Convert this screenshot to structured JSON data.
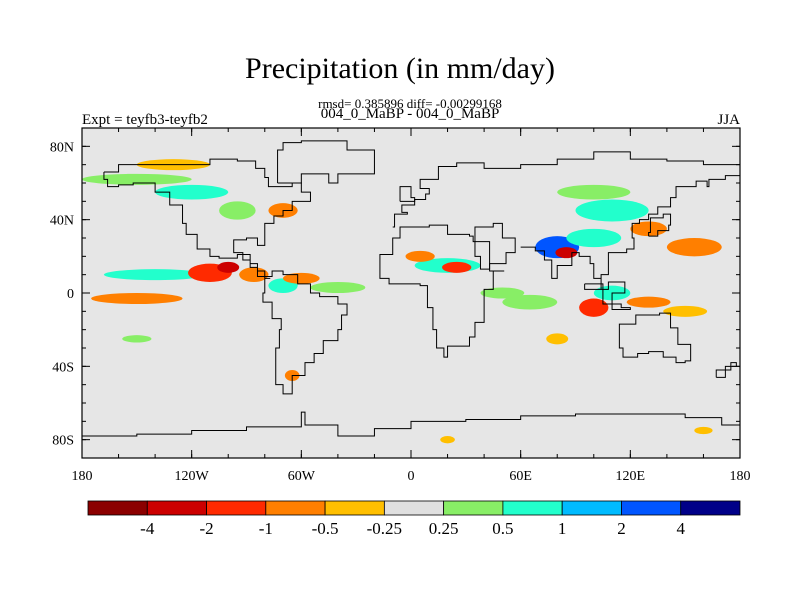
{
  "chart_data": {
    "type": "heatmap",
    "title": "Precipitation (in mm/day)",
    "stats_text": "rmsd= 0.385896 diff= -0.00299168",
    "run_label": "004_0_MaBP - 004_0_MaBP",
    "left_label": "Expt = teyfb3-teyfb2",
    "right_label": "JJA",
    "x_axis": {
      "ticks": [
        {
          "value": -180,
          "label": "180"
        },
        {
          "value": -120,
          "label": "120W"
        },
        {
          "value": -60,
          "label": "60W"
        },
        {
          "value": 0,
          "label": "0"
        },
        {
          "value": 60,
          "label": "60E"
        },
        {
          "value": 120,
          "label": "120E"
        },
        {
          "value": 180,
          "label": "180"
        }
      ],
      "range": [
        -180,
        180
      ]
    },
    "y_axis": {
      "ticks": [
        {
          "value": 80,
          "label": "80N"
        },
        {
          "value": 40,
          "label": "40N"
        },
        {
          "value": 0,
          "label": "0"
        },
        {
          "value": -40,
          "label": "40S"
        },
        {
          "value": -80,
          "label": "80S"
        }
      ],
      "range": [
        -90,
        90
      ]
    },
    "colorbar": {
      "levels": [
        "-4",
        "-2",
        "-1",
        "-0.5",
        "-0.25",
        "0.25",
        "0.5",
        "1",
        "2",
        "4"
      ],
      "colors": [
        "#8b0000",
        "#cc0000",
        "#ff2a00",
        "#ff7f00",
        "#ffbf00",
        "#e0e0e0",
        "#88ee66",
        "#22ffcc",
        "#00bbff",
        "#0055ff",
        "#000088"
      ]
    },
    "fields": [
      {
        "lon": -150,
        "lat": -3,
        "rlon": 25,
        "rlat": 3,
        "color": "#ff7f00"
      },
      {
        "lon": -140,
        "lat": 10,
        "rlon": 28,
        "rlat": 3,
        "color": "#22ffcc"
      },
      {
        "lon": -110,
        "lat": 11,
        "rlon": 12,
        "rlat": 5,
        "color": "#ff2a00"
      },
      {
        "lon": -100,
        "lat": 14,
        "rlon": 6,
        "rlat": 3,
        "color": "#cc0000"
      },
      {
        "lon": -86,
        "lat": 10,
        "rlon": 8,
        "rlat": 4,
        "color": "#ff7f00"
      },
      {
        "lon": -70,
        "lat": 4,
        "rlon": 8,
        "rlat": 4,
        "color": "#22ffcc"
      },
      {
        "lon": -60,
        "lat": 8,
        "rlon": 10,
        "rlat": 3,
        "color": "#ff7f00"
      },
      {
        "lon": -40,
        "lat": 3,
        "rlon": 15,
        "rlat": 3,
        "color": "#88ee66"
      },
      {
        "lon": -150,
        "lat": 62,
        "rlon": 30,
        "rlat": 3,
        "color": "#88ee66"
      },
      {
        "lon": -120,
        "lat": 55,
        "rlon": 20,
        "rlat": 4,
        "color": "#22ffcc"
      },
      {
        "lon": -95,
        "lat": 45,
        "rlon": 10,
        "rlat": 5,
        "color": "#88ee66"
      },
      {
        "lon": -70,
        "lat": 45,
        "rlon": 8,
        "rlat": 4,
        "color": "#ff7f00"
      },
      {
        "lon": -130,
        "lat": 70,
        "rlon": 20,
        "rlat": 3,
        "color": "#ffbf00"
      },
      {
        "lon": 20,
        "lat": 15,
        "rlon": 18,
        "rlat": 4,
        "color": "#22ffcc"
      },
      {
        "lon": 25,
        "lat": 14,
        "rlon": 8,
        "rlat": 3,
        "color": "#ff2a00"
      },
      {
        "lon": 5,
        "lat": 20,
        "rlon": 8,
        "rlat": 3,
        "color": "#ff7f00"
      },
      {
        "lon": 50,
        "lat": 0,
        "rlon": 12,
        "rlat": 3,
        "color": "#88ee66"
      },
      {
        "lon": 65,
        "lat": -5,
        "rlon": 15,
        "rlat": 4,
        "color": "#88ee66"
      },
      {
        "lon": 80,
        "lat": 25,
        "rlon": 12,
        "rlat": 6,
        "color": "#0055ff"
      },
      {
        "lon": 85,
        "lat": 22,
        "rlon": 6,
        "rlat": 3,
        "color": "#cc0000"
      },
      {
        "lon": 100,
        "lat": 30,
        "rlon": 15,
        "rlat": 5,
        "color": "#22ffcc"
      },
      {
        "lon": 110,
        "lat": 45,
        "rlon": 20,
        "rlat": 6,
        "color": "#22ffcc"
      },
      {
        "lon": 100,
        "lat": 55,
        "rlon": 20,
        "rlat": 4,
        "color": "#88ee66"
      },
      {
        "lon": 130,
        "lat": 35,
        "rlon": 10,
        "rlat": 4,
        "color": "#ff7f00"
      },
      {
        "lon": 155,
        "lat": 25,
        "rlon": 15,
        "rlat": 5,
        "color": "#ff7f00"
      },
      {
        "lon": 100,
        "lat": -8,
        "rlon": 8,
        "rlat": 5,
        "color": "#ff2a00"
      },
      {
        "lon": 110,
        "lat": 0,
        "rlon": 10,
        "rlat": 4,
        "color": "#22ffcc"
      },
      {
        "lon": 130,
        "lat": -5,
        "rlon": 12,
        "rlat": 3,
        "color": "#ff7f00"
      },
      {
        "lon": 150,
        "lat": -10,
        "rlon": 12,
        "rlat": 3,
        "color": "#ffbf00"
      },
      {
        "lon": 80,
        "lat": -25,
        "rlon": 6,
        "rlat": 3,
        "color": "#ffbf00"
      },
      {
        "lon": -150,
        "lat": -25,
        "rlon": 8,
        "rlat": 2,
        "color": "#88ee66"
      },
      {
        "lon": -65,
        "lat": -45,
        "rlon": 4,
        "rlat": 3,
        "color": "#ff7f00"
      },
      {
        "lon": 20,
        "lat": -80,
        "rlon": 4,
        "rlat": 2,
        "color": "#ffbf00"
      },
      {
        "lon": 160,
        "lat": -75,
        "rlon": 5,
        "rlat": 2,
        "color": "#ffbf00"
      }
    ]
  }
}
